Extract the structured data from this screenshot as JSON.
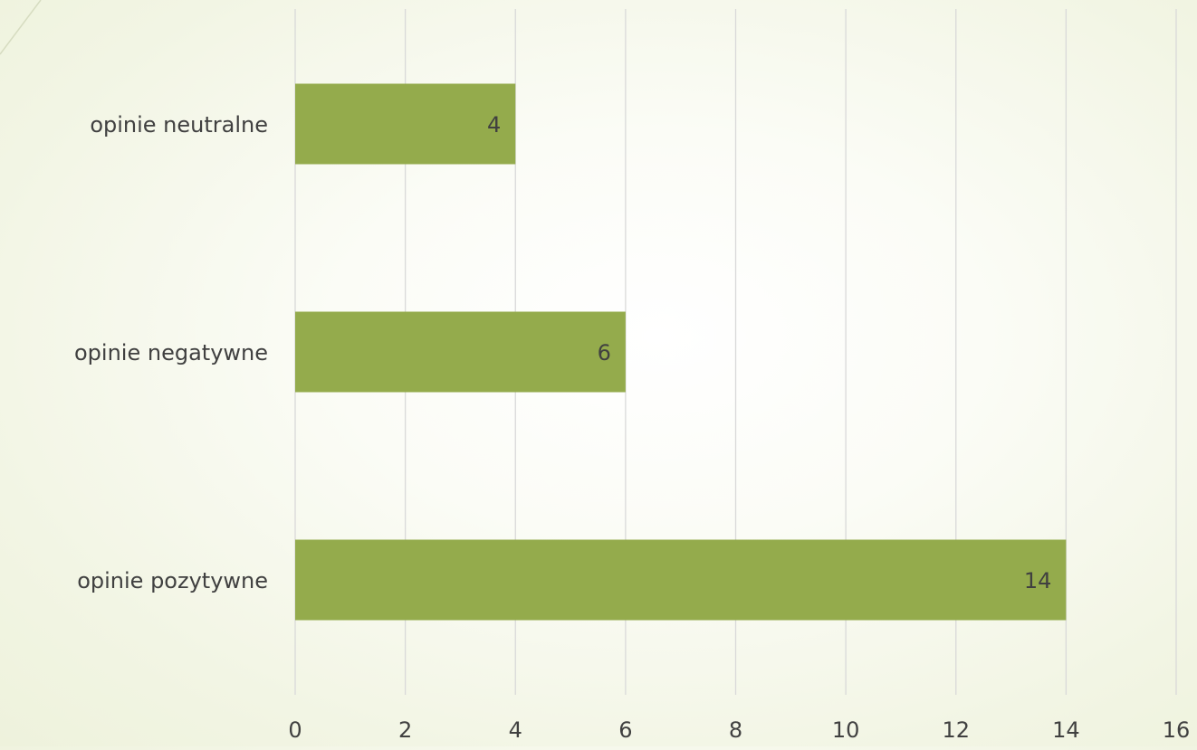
{
  "chart_data": {
    "type": "bar",
    "orientation": "horizontal",
    "categories": [
      "opinie neutralne",
      "opinie negatywne",
      "opinie pozytywne"
    ],
    "values": [
      4,
      6,
      14
    ],
    "data_labels": [
      "4",
      "6",
      "14"
    ],
    "xlim": [
      0,
      16
    ],
    "x_ticks": [
      "0",
      "2",
      "4",
      "6",
      "8",
      "10",
      "12",
      "14",
      "16"
    ],
    "title": "",
    "xlabel": "",
    "ylabel": "",
    "grid": "vertical",
    "legend": "none"
  },
  "colors": {
    "bar": "#94AB4C",
    "gridline": "#D9D9D9",
    "text": "#404040",
    "corner_line": "#D6DCC0"
  }
}
